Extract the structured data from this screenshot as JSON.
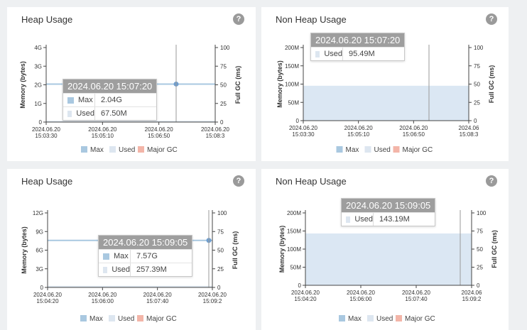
{
  "colors": {
    "max": "#a9c8e0",
    "used": "#dde6f0",
    "major_gc": "#f3b5a8",
    "area_fill": "#d5e3f1",
    "line": "#6e9ed0"
  },
  "help_icon": "question-circle-icon",
  "panels": [
    {
      "title": "Heap Usage",
      "tooltip": {
        "time": "2024.06.20 15:07:20",
        "rows": [
          {
            "name": "Max",
            "value": "2.04G",
            "color": "#a9c8e0"
          },
          {
            "name": "Used",
            "value": "67.50M",
            "color": "#dde6f0"
          }
        ]
      },
      "legend": [
        "Max",
        "Used",
        "Major GC"
      ]
    },
    {
      "title": "Non Heap Usage",
      "tooltip": {
        "time": "2024.06.20 15:07:20",
        "rows": [
          {
            "name": "Used",
            "value": "95.49M",
            "color": "#dde6f0"
          }
        ]
      },
      "legend": [
        "Max",
        "Used",
        "Major GC"
      ]
    },
    {
      "title": "Heap Usage",
      "tooltip": {
        "time": "2024.06.20 15:09:05",
        "rows": [
          {
            "name": "Max",
            "value": "7.57G",
            "color": "#a9c8e0"
          },
          {
            "name": "Used",
            "value": "257.39M",
            "color": "#dde6f0"
          }
        ]
      },
      "legend": [
        "Max",
        "Used",
        "Major GC"
      ]
    },
    {
      "title": "Non Heap Usage",
      "tooltip": {
        "time": "2024.06.20 15:09:05",
        "rows": [
          {
            "name": "Used",
            "value": "143.19M",
            "color": "#dde6f0"
          }
        ]
      },
      "legend": [
        "Max",
        "Used",
        "Major GC"
      ]
    }
  ],
  "chart_data": [
    {
      "type": "line",
      "title": "Heap Usage",
      "ylabel": "Memory (bytes)",
      "y2label": "Full GC (ms)",
      "y_ticks": [
        "0",
        "1G",
        "2G",
        "3G",
        "4G"
      ],
      "y_range_gb": [
        0,
        4
      ],
      "y2_ticks": [
        "0",
        "25",
        "50",
        "75",
        "100"
      ],
      "y2_range": [
        0,
        100
      ],
      "x_ticks": [
        [
          "2024.06.20",
          "15:03:30"
        ],
        [
          "2024.06.20",
          "15:05:10"
        ],
        [
          "2024.06.20",
          "15:06:50"
        ],
        [
          "2024.06.20",
          "15:08:3"
        ]
      ],
      "series": [
        {
          "name": "Max",
          "values_gb": [
            2.04,
            2.04
          ],
          "x": [
            "15:03:30",
            "15:07:20"
          ]
        },
        {
          "name": "Used",
          "values_gb": [
            0.066,
            0.066
          ],
          "x": [
            "15:03:30",
            "15:07:20"
          ]
        },
        {
          "name": "Major GC",
          "values": []
        }
      ],
      "legend": "bottom",
      "grid": false
    },
    {
      "type": "area",
      "title": "Non Heap Usage",
      "ylabel": "Memory (bytes)",
      "y2label": "Full GC (ms)",
      "y_ticks": [
        "0",
        "50M",
        "100M",
        "150M",
        "200M"
      ],
      "y_range_mb": [
        0,
        200
      ],
      "y2_ticks": [
        "0",
        "25",
        "50",
        "75",
        "100"
      ],
      "y2_range": [
        0,
        100
      ],
      "x_ticks": [
        [
          "2024.06.20",
          "15:03:30"
        ],
        [
          "2024.06.20",
          "15:05:10"
        ],
        [
          "2024.06.20",
          "15:06:50"
        ],
        [
          "2024.06",
          "15:08:3"
        ]
      ],
      "series": [
        {
          "name": "Used",
          "values_mb": [
            95.49,
            95.49
          ],
          "x": [
            "15:03:30",
            "15:07:20"
          ]
        }
      ],
      "legend": "bottom",
      "grid": false
    },
    {
      "type": "line",
      "title": "Heap Usage",
      "ylabel": "Memory (bytes)",
      "y2label": "Full GC (ms)",
      "y_ticks": [
        "0",
        "3G",
        "6G",
        "9G",
        "12G"
      ],
      "y_range_gb": [
        0,
        12
      ],
      "y2_ticks": [
        "0",
        "25",
        "50",
        "75",
        "100"
      ],
      "y2_range": [
        0,
        100
      ],
      "x_ticks": [
        [
          "2024.06.20",
          "15:04:20"
        ],
        [
          "2024.06.20",
          "15:06:00"
        ],
        [
          "2024.06.20",
          "15:07:40"
        ],
        [
          "2024.06.20",
          "15:09:2"
        ]
      ],
      "series": [
        {
          "name": "Max",
          "values_gb": [
            7.57,
            7.57
          ],
          "x": [
            "15:04:20",
            "15:09:05"
          ]
        },
        {
          "name": "Used",
          "values_gb": [
            0.251,
            0.251
          ],
          "x": [
            "15:04:20",
            "15:09:05"
          ]
        },
        {
          "name": "Major GC",
          "values": []
        }
      ],
      "legend": "bottom",
      "grid": false
    },
    {
      "type": "area",
      "title": "Non Heap Usage",
      "ylabel": "Memory (bytes)",
      "y2label": "Full GC (ms)",
      "y_ticks": [
        "0",
        "50M",
        "100M",
        "150M",
        "200M"
      ],
      "y_range_mb": [
        0,
        200
      ],
      "y2_ticks": [
        "0",
        "25",
        "50",
        "75",
        "100"
      ],
      "y2_range": [
        0,
        100
      ],
      "x_ticks": [
        [
          "2024.06.20",
          "15:04:20"
        ],
        [
          "2024.06.20",
          "15:06:00"
        ],
        [
          "2024.06.20",
          "15:07:40"
        ],
        [
          "2024.06",
          "15:09:2"
        ]
      ],
      "series": [
        {
          "name": "Used",
          "values_mb": [
            143.19,
            143.19
          ],
          "x": [
            "15:04:20",
            "15:09:05"
          ]
        }
      ],
      "legend": "bottom",
      "grid": false
    }
  ]
}
